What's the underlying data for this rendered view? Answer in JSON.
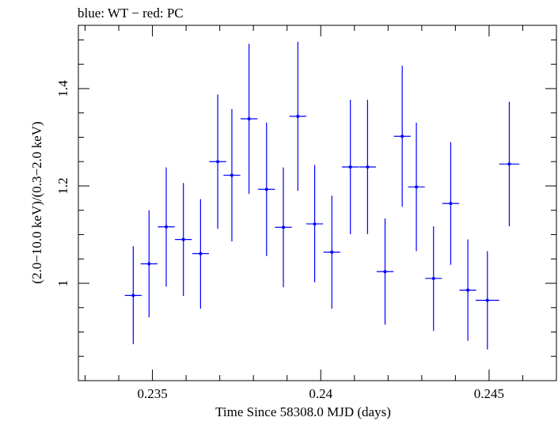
{
  "chart_data": {
    "type": "scatter",
    "title": "blue: WT − red: PC",
    "xlabel": "Time Since 58308.0 MJD (days)",
    "ylabel": "(2.0−10.0 keV)/(0.3−2.0 keV)",
    "xlim": [
      0.2328,
      0.247
    ],
    "ylim": [
      0.8,
      1.53
    ],
    "x_ticks": [
      0.235,
      0.24,
      0.245
    ],
    "x_tick_labels": [
      "0.235",
      "0.24",
      "0.245"
    ],
    "y_ticks": [
      1.0,
      1.2,
      1.4
    ],
    "y_tick_labels": [
      "1",
      "1.2",
      "1.4"
    ],
    "grid": false,
    "legend": "none",
    "series": [
      {
        "color": "#0000ff",
        "points": [
          {
            "x": 0.23443,
            "y": 0.975,
            "xerr": 0.00025,
            "ylo": 0.875,
            "yhi": 1.076
          },
          {
            "x": 0.2349,
            "y": 1.04,
            "xerr": 0.00025,
            "ylo": 0.93,
            "yhi": 1.15
          },
          {
            "x": 0.23541,
            "y": 1.116,
            "xerr": 0.00025,
            "ylo": 0.993,
            "yhi": 1.238
          },
          {
            "x": 0.23592,
            "y": 1.09,
            "xerr": 0.00025,
            "ylo": 0.974,
            "yhi": 1.206
          },
          {
            "x": 0.23643,
            "y": 1.061,
            "xerr": 0.00025,
            "ylo": 0.948,
            "yhi": 1.173
          },
          {
            "x": 0.23694,
            "y": 1.25,
            "xerr": 0.00025,
            "ylo": 1.112,
            "yhi": 1.388
          },
          {
            "x": 0.23736,
            "y": 1.222,
            "xerr": 0.00025,
            "ylo": 1.086,
            "yhi": 1.358
          },
          {
            "x": 0.23787,
            "y": 1.338,
            "xerr": 0.00025,
            "ylo": 1.184,
            "yhi": 1.492
          },
          {
            "x": 0.23839,
            "y": 1.193,
            "xerr": 0.00025,
            "ylo": 1.056,
            "yhi": 1.33
          },
          {
            "x": 0.23889,
            "y": 1.115,
            "xerr": 0.00025,
            "ylo": 0.992,
            "yhi": 1.238
          },
          {
            "x": 0.23932,
            "y": 1.343,
            "xerr": 0.00025,
            "ylo": 1.19,
            "yhi": 1.496
          },
          {
            "x": 0.23982,
            "y": 1.122,
            "xerr": 0.00025,
            "ylo": 1.002,
            "yhi": 1.243
          },
          {
            "x": 0.24033,
            "y": 1.064,
            "xerr": 0.00025,
            "ylo": 0.948,
            "yhi": 1.18
          },
          {
            "x": 0.24088,
            "y": 1.239,
            "xerr": 0.00025,
            "ylo": 1.101,
            "yhi": 1.377
          },
          {
            "x": 0.24139,
            "y": 1.239,
            "xerr": 0.00025,
            "ylo": 1.101,
            "yhi": 1.377
          },
          {
            "x": 0.24191,
            "y": 1.024,
            "xerr": 0.00025,
            "ylo": 0.915,
            "yhi": 1.133
          },
          {
            "x": 0.24242,
            "y": 1.302,
            "xerr": 0.00025,
            "ylo": 1.157,
            "yhi": 1.447
          },
          {
            "x": 0.24284,
            "y": 1.198,
            "xerr": 0.00025,
            "ylo": 1.066,
            "yhi": 1.33
          },
          {
            "x": 0.24335,
            "y": 1.01,
            "xerr": 0.00025,
            "ylo": 0.902,
            "yhi": 1.117
          },
          {
            "x": 0.24386,
            "y": 1.164,
            "xerr": 0.00025,
            "ylo": 1.038,
            "yhi": 1.29
          },
          {
            "x": 0.24437,
            "y": 0.986,
            "xerr": 0.00025,
            "ylo": 0.882,
            "yhi": 1.09
          },
          {
            "x": 0.24495,
            "y": 0.965,
            "xerr": 0.00035,
            "ylo": 0.864,
            "yhi": 1.066
          },
          {
            "x": 0.2456,
            "y": 1.245,
            "xerr": 0.0003,
            "ylo": 1.117,
            "yhi": 1.373
          }
        ]
      }
    ]
  }
}
